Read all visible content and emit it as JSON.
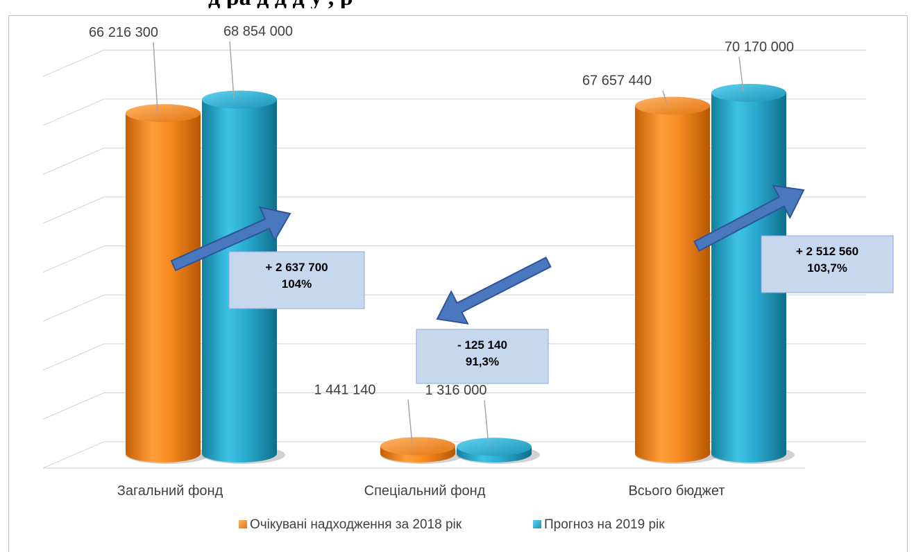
{
  "page": {
    "title_fragment": "д   ра                д д             д              у          , р"
  },
  "colors": {
    "series_2018": "#f28a1e",
    "series_2019": "#2aa9cf",
    "arrow": "#4a78bf",
    "callout_fill": "#c6d7ee",
    "grid": "#d9d9d9"
  },
  "chart_data": {
    "type": "bar",
    "title": "",
    "xlabel": "",
    "ylabel": "",
    "categories": [
      "Загальний фонд",
      "Спеціальний фонд",
      "Всього бюджет"
    ],
    "series": [
      {
        "name": "Очікувані надходження за 2018 рік",
        "values": [
          66216300,
          1441140,
          67657440
        ],
        "labels": [
          "66 216 300",
          "1 441 140",
          "67 657 440"
        ]
      },
      {
        "name": "Прогноз на 2019 рік",
        "values": [
          68854000,
          1316000,
          70170000
        ],
        "labels": [
          "68 854 000",
          "1 316 000",
          "70 170 000"
        ]
      }
    ],
    "ylim": [
      0,
      80000000
    ],
    "grid": true,
    "legend_position": "bottom",
    "annotations": [
      {
        "category": "Загальний фонд",
        "line1": "+ 2  637 700",
        "line2": "104%",
        "direction": "up"
      },
      {
        "category": "Спеціальний фонд",
        "line1": "- 125 140",
        "line2": "91,3%",
        "direction": "down"
      },
      {
        "category": "Всього бюджет",
        "line1": "+ 2 512 560",
        "line2": "103,7%",
        "direction": "up"
      }
    ]
  }
}
